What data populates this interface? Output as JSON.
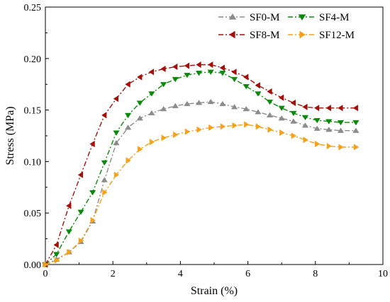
{
  "chart_data": {
    "type": "line",
    "title": "",
    "xlabel": "Strain (%)",
    "ylabel": "Stress (MPa)",
    "xlim": [
      0,
      10
    ],
    "ylim": [
      0,
      0.25
    ],
    "xticks": [
      "0",
      "2",
      "4",
      "6",
      "8",
      "10"
    ],
    "yticks": [
      "0.00",
      "0.05",
      "0.10",
      "0.15",
      "0.20",
      "0.25"
    ],
    "grid": false,
    "legend_position": "top-right",
    "series": [
      {
        "name": "SF0-M",
        "color": "#8c8c8c",
        "marker": "triangle-up",
        "points": [
          [
            0,
            0
          ],
          [
            0.33,
            0.005
          ],
          [
            0.7,
            0.012
          ],
          [
            1.05,
            0.022
          ],
          [
            1.4,
            0.042
          ],
          [
            1.75,
            0.082
          ],
          [
            2.1,
            0.118
          ],
          [
            2.45,
            0.133
          ],
          [
            2.8,
            0.142
          ],
          [
            3.15,
            0.147
          ],
          [
            3.5,
            0.151
          ],
          [
            3.85,
            0.154
          ],
          [
            4.2,
            0.156
          ],
          [
            4.55,
            0.157
          ],
          [
            4.9,
            0.158
          ],
          [
            5.25,
            0.156
          ],
          [
            5.6,
            0.153
          ],
          [
            5.95,
            0.151
          ],
          [
            6.3,
            0.148
          ],
          [
            6.65,
            0.145
          ],
          [
            7.0,
            0.142
          ],
          [
            7.35,
            0.139
          ],
          [
            7.7,
            0.135
          ],
          [
            8.05,
            0.132
          ],
          [
            8.4,
            0.131
          ],
          [
            8.75,
            0.13
          ],
          [
            9.2,
            0.13
          ]
        ]
      },
      {
        "name": "SF4-M",
        "color": "#0a8a0a",
        "marker": "triangle-down",
        "points": [
          [
            0,
            0
          ],
          [
            0.33,
            0.01
          ],
          [
            0.7,
            0.032
          ],
          [
            1.05,
            0.051
          ],
          [
            1.4,
            0.07
          ],
          [
            1.75,
            0.099
          ],
          [
            2.1,
            0.128
          ],
          [
            2.45,
            0.145
          ],
          [
            2.8,
            0.157
          ],
          [
            3.15,
            0.166
          ],
          [
            3.5,
            0.175
          ],
          [
            3.85,
            0.18
          ],
          [
            4.2,
            0.184
          ],
          [
            4.55,
            0.186
          ],
          [
            4.9,
            0.187
          ],
          [
            5.25,
            0.186
          ],
          [
            5.6,
            0.18
          ],
          [
            5.95,
            0.173
          ],
          [
            6.3,
            0.166
          ],
          [
            6.65,
            0.158
          ],
          [
            7.0,
            0.152
          ],
          [
            7.35,
            0.147
          ],
          [
            7.7,
            0.143
          ],
          [
            8.05,
            0.14
          ],
          [
            8.4,
            0.139
          ],
          [
            8.75,
            0.138
          ],
          [
            9.2,
            0.138
          ]
        ]
      },
      {
        "name": "SF8-M",
        "color": "#a3100a",
        "marker": "triangle-left",
        "points": [
          [
            0,
            0
          ],
          [
            0.33,
            0.019
          ],
          [
            0.7,
            0.057
          ],
          [
            1.05,
            0.087
          ],
          [
            1.4,
            0.117
          ],
          [
            1.75,
            0.145
          ],
          [
            2.1,
            0.161
          ],
          [
            2.45,
            0.175
          ],
          [
            2.8,
            0.182
          ],
          [
            3.15,
            0.187
          ],
          [
            3.5,
            0.19
          ],
          [
            3.85,
            0.192
          ],
          [
            4.2,
            0.193
          ],
          [
            4.55,
            0.194
          ],
          [
            4.9,
            0.194
          ],
          [
            5.25,
            0.191
          ],
          [
            5.6,
            0.187
          ],
          [
            5.95,
            0.182
          ],
          [
            6.3,
            0.174
          ],
          [
            6.65,
            0.168
          ],
          [
            7.0,
            0.162
          ],
          [
            7.35,
            0.157
          ],
          [
            7.7,
            0.153
          ],
          [
            8.05,
            0.152
          ],
          [
            8.4,
            0.152
          ],
          [
            8.75,
            0.152
          ],
          [
            9.2,
            0.152
          ]
        ]
      },
      {
        "name": "SF12-M",
        "color": "#f5a11a",
        "marker": "triangle-right",
        "points": [
          [
            0,
            0
          ],
          [
            0.33,
            0.004
          ],
          [
            0.7,
            0.012
          ],
          [
            1.05,
            0.023
          ],
          [
            1.4,
            0.043
          ],
          [
            1.75,
            0.07
          ],
          [
            2.1,
            0.087
          ],
          [
            2.45,
            0.101
          ],
          [
            2.8,
            0.112
          ],
          [
            3.15,
            0.119
          ],
          [
            3.5,
            0.123
          ],
          [
            3.85,
            0.126
          ],
          [
            4.2,
            0.129
          ],
          [
            4.55,
            0.131
          ],
          [
            4.9,
            0.133
          ],
          [
            5.25,
            0.134
          ],
          [
            5.6,
            0.135
          ],
          [
            5.95,
            0.136
          ],
          [
            6.3,
            0.134
          ],
          [
            6.65,
            0.131
          ],
          [
            7.0,
            0.128
          ],
          [
            7.35,
            0.125
          ],
          [
            7.7,
            0.121
          ],
          [
            8.05,
            0.117
          ],
          [
            8.4,
            0.115
          ],
          [
            8.75,
            0.114
          ],
          [
            9.2,
            0.114
          ]
        ]
      }
    ]
  }
}
